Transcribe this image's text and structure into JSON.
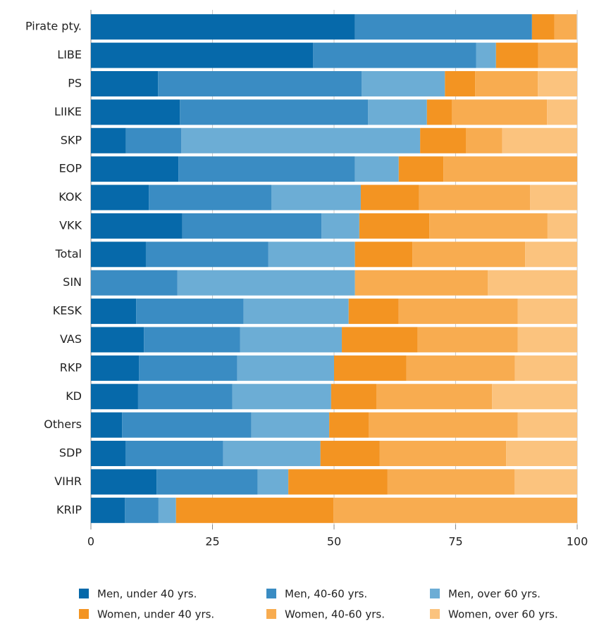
{
  "chart_data": {
    "type": "stacked-barh",
    "categories": [
      "Pirate pty.",
      "LIBE",
      "PS",
      "LIIKE",
      "SKP",
      "EOP",
      "KOK",
      "VKK",
      "Total",
      "SIN",
      "KESK",
      "VAS",
      "RKP",
      "KD",
      "Others",
      "SDP",
      "VIHR",
      "KRIP"
    ],
    "series": [
      {
        "name": "Men, under 40 yrs.",
        "color": "#0669aa",
        "values": [
          54.3,
          45.7,
          13.8,
          18.3,
          7.2,
          18.0,
          11.9,
          18.8,
          11.3,
          0,
          9.3,
          10.9,
          9.9,
          9.7,
          6.4,
          7.1,
          13.5,
          7.0
        ]
      },
      {
        "name": "Men, 40-60 yrs.",
        "color": "#3a8cc3",
        "values": [
          36.4,
          33.5,
          41.9,
          38.7,
          11.4,
          36.3,
          25.2,
          28.6,
          25.2,
          17.8,
          22.1,
          19.8,
          20.2,
          19.4,
          26.6,
          20.1,
          20.8,
          6.9
        ]
      },
      {
        "name": "Men, over 60 yrs.",
        "color": "#6cadd5",
        "values": [
          0,
          4.1,
          17.1,
          12.1,
          49.1,
          9.0,
          18.4,
          7.8,
          17.8,
          36.5,
          21.6,
          20.9,
          19.9,
          20.3,
          16.0,
          20.0,
          6.3,
          3.6
        ]
      },
      {
        "name": "Women, under 40 yrs.",
        "color": "#f39422",
        "values": [
          4.6,
          8.7,
          6.2,
          5.1,
          9.4,
          9.2,
          12.0,
          14.4,
          11.8,
          0,
          10.3,
          15.6,
          14.9,
          9.3,
          8.1,
          12.2,
          20.4,
          32.4
        ]
      },
      {
        "name": "Women, 40-60 yrs.",
        "color": "#f8ac50",
        "values": [
          4.6,
          8.1,
          12.9,
          19.6,
          7.5,
          27.5,
          22.8,
          24.3,
          23.2,
          27.3,
          24.5,
          20.6,
          22.3,
          23.8,
          30.7,
          26.0,
          26.1,
          50.1
        ]
      },
      {
        "name": "Women, over 60 yrs.",
        "color": "#fbc37e",
        "values": [
          0,
          0,
          8.1,
          6.2,
          15.4,
          0,
          9.7,
          6.1,
          10.7,
          18.4,
          12.2,
          12.2,
          12.8,
          17.5,
          12.2,
          14.6,
          12.9,
          0
        ]
      }
    ],
    "xlim": [
      0,
      100
    ],
    "xticks": [
      0,
      25,
      50,
      75,
      100
    ],
    "grid": true
  }
}
